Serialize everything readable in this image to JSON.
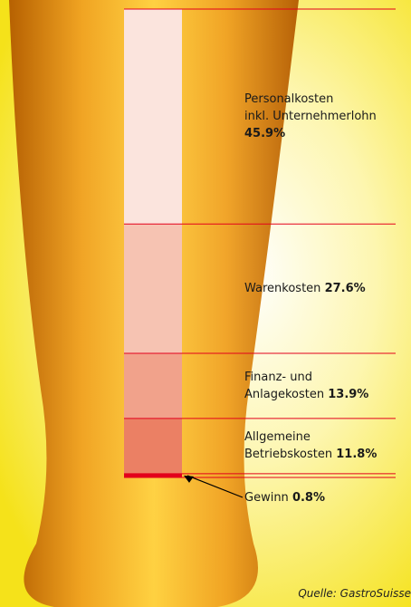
{
  "chart_data": {
    "type": "bar",
    "stacked": true,
    "categories": [
      "Personalkosten\ninkl. Unternehmerlohn",
      "Warenkosten",
      "Finanz- und\nAnlagekosten",
      "Allgemeine\nBetriebskosten",
      "Gewinn"
    ],
    "values": [
      45.9,
      27.6,
      13.9,
      11.8,
      0.8
    ],
    "value_labels": [
      "45.9%",
      "27.6%",
      "13.9%",
      "11.8%",
      "0.8%"
    ],
    "colors": [
      "#fbe4dd",
      "#f6c3b2",
      "#f1a28b",
      "#eb8064",
      "#e3001b"
    ],
    "line_color": "#e3001b",
    "source": "Quelle: GastroSuisse"
  }
}
